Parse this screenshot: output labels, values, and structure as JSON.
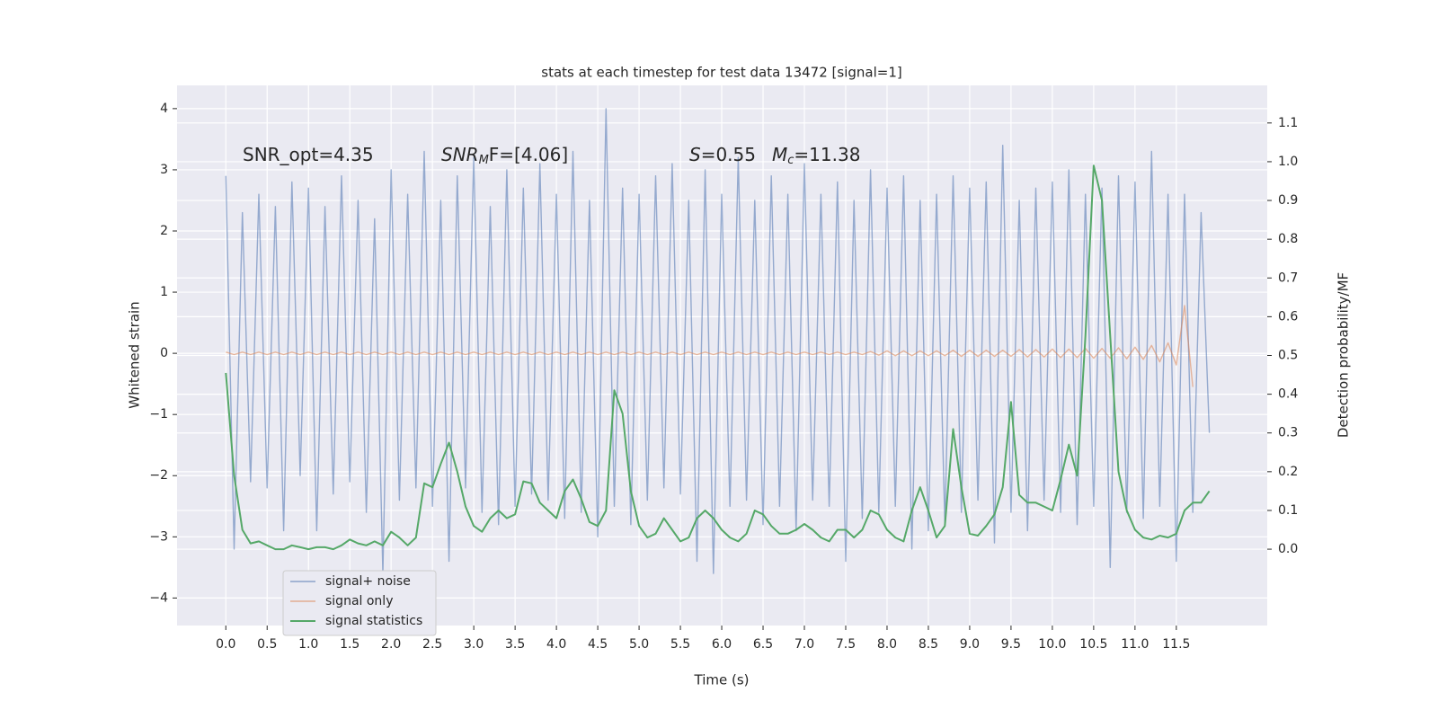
{
  "chart_data": {
    "type": "line",
    "title": "stats at each timestep for test data 13472 [signal=1]",
    "x_label": "Time (s)",
    "y_label": "Whitened strain",
    "y2_label": "Detection probability/MF",
    "annotations": [
      {
        "text": "SNR_opt=4.35"
      },
      {
        "text": "SNR",
        "sub": "M",
        "after": "F=[4.06]"
      },
      {
        "text": "S",
        "after": "=0.55"
      },
      {
        "text": "M",
        "sub": "c",
        "after": "=11.38"
      }
    ],
    "x": [
      0,
      0.1,
      0.2,
      0.3,
      0.4,
      0.5,
      0.6,
      0.7,
      0.8,
      0.9,
      1,
      1.1,
      1.2,
      1.3,
      1.4,
      1.5,
      1.6,
      1.7,
      1.8,
      1.9,
      2,
      2.1,
      2.2,
      2.3,
      2.4,
      2.5,
      2.6,
      2.7,
      2.8,
      2.9,
      3,
      3.1,
      3.2,
      3.3,
      3.4,
      3.5,
      3.6,
      3.7,
      3.8,
      3.9,
      4,
      4.1,
      4.2,
      4.3,
      4.4,
      4.5,
      4.6,
      4.7,
      4.8,
      4.9,
      5,
      5.1,
      5.2,
      5.3,
      5.4,
      5.5,
      5.6,
      5.7,
      5.8,
      5.9,
      6,
      6.1,
      6.2,
      6.3,
      6.4,
      6.5,
      6.6,
      6.7,
      6.8,
      6.9,
      7,
      7.1,
      7.2,
      7.3,
      7.4,
      7.5,
      7.6,
      7.7,
      7.8,
      7.9,
      8,
      8.1,
      8.2,
      8.3,
      8.4,
      8.5,
      8.6,
      8.7,
      8.8,
      8.9,
      9,
      9.1,
      9.2,
      9.3,
      9.4,
      9.5,
      9.6,
      9.7,
      9.8,
      9.9,
      10,
      10.1,
      10.2,
      10.3,
      10.4,
      10.5,
      10.6,
      10.7,
      10.8,
      10.9,
      11,
      11.1,
      11.2,
      11.3,
      11.4,
      11.5,
      11.6,
      11.7,
      11.8,
      11.9
    ],
    "series": [
      {
        "name": "signal+ noise",
        "color": "#4c72b0",
        "values": [
          2.9,
          -3.2,
          2.3,
          -2.1,
          2.6,
          -2.2,
          2.4,
          -2.9,
          2.8,
          -2.0,
          2.7,
          -2.9,
          2.4,
          -2.3,
          2.9,
          -2.1,
          2.5,
          -2.6,
          2.2,
          -3.6,
          3.0,
          -2.4,
          2.6,
          -2.2,
          3.3,
          -2.5,
          2.5,
          -3.4,
          2.9,
          -2.2,
          3.2,
          -2.6,
          2.4,
          -2.8,
          3.0,
          -2.5,
          2.7,
          -2.3,
          3.1,
          -2.4,
          2.6,
          -2.7,
          3.3,
          -2.6,
          2.5,
          -3.0,
          4.0,
          -2.5,
          2.7,
          -2.8,
          2.6,
          -2.4,
          2.9,
          -2.2,
          3.1,
          -2.3,
          2.5,
          -3.4,
          3.0,
          -3.6,
          2.6,
          -2.5,
          3.2,
          -2.4,
          2.5,
          -2.8,
          2.9,
          -2.5,
          2.6,
          -2.9,
          3.1,
          -2.4,
          2.6,
          -2.5,
          2.8,
          -3.4,
          2.5,
          -2.7,
          3.0,
          -2.6,
          2.7,
          -2.5,
          2.9,
          -3.2,
          2.5,
          -2.9,
          2.6,
          -2.8,
          2.9,
          -2.6,
          2.7,
          -2.4,
          2.8,
          -3.1,
          3.4,
          -2.6,
          2.5,
          -2.9,
          2.7,
          -2.4,
          2.8,
          -2.6,
          3.0,
          -2.8,
          2.6,
          -2.5,
          2.7,
          -3.5,
          2.9,
          -2.6,
          2.8,
          -2.7,
          3.3,
          -2.5,
          2.6,
          -3.4,
          2.6,
          -2.6,
          2.3,
          -1.3
        ]
      },
      {
        "name": "signal only",
        "color": "#dd8452",
        "values": [
          0.02,
          -0.02,
          0.02,
          -0.02,
          0.02,
          -0.02,
          0.02,
          -0.02,
          0.02,
          -0.02,
          0.02,
          -0.02,
          0.02,
          -0.02,
          0.02,
          -0.02,
          0.02,
          -0.02,
          0.02,
          -0.02,
          0.02,
          -0.02,
          0.02,
          -0.02,
          0.02,
          -0.02,
          0.02,
          -0.02,
          0.02,
          -0.02,
          0.02,
          -0.02,
          0.02,
          -0.02,
          0.02,
          -0.02,
          0.02,
          -0.02,
          0.02,
          -0.02,
          0.02,
          -0.02,
          0.02,
          -0.02,
          0.02,
          -0.02,
          0.02,
          -0.02,
          0.02,
          -0.02,
          0.02,
          -0.02,
          0.02,
          -0.02,
          0.02,
          -0.02,
          0.02,
          -0.02,
          0.02,
          -0.02,
          0.02,
          -0.02,
          0.02,
          -0.02,
          0.02,
          -0.02,
          0.02,
          -0.02,
          0.02,
          -0.02,
          0.02,
          -0.02,
          0.02,
          -0.02,
          0.02,
          -0.02,
          0.02,
          -0.02,
          0.03,
          -0.03,
          0.04,
          -0.04,
          0.04,
          -0.04,
          0.04,
          -0.04,
          0.04,
          -0.04,
          0.05,
          -0.05,
          0.05,
          -0.05,
          0.05,
          -0.05,
          0.05,
          -0.05,
          0.06,
          -0.06,
          0.06,
          -0.06,
          0.07,
          -0.07,
          0.07,
          -0.07,
          0.08,
          -0.08,
          0.08,
          -0.08,
          0.09,
          -0.09,
          0.1,
          -0.1,
          0.13,
          -0.14,
          0.17,
          -0.19,
          0.78,
          -0.55,
          null,
          null
        ]
      },
      {
        "name": "signal statistics",
        "color": "#55a868",
        "axis": "y2",
        "values": [
          0.455,
          0.19,
          0.05,
          0.015,
          0.02,
          0.01,
          0,
          0,
          0.01,
          0.005,
          0,
          0.005,
          0.005,
          0,
          0.01,
          0.025,
          0.015,
          0.01,
          0.02,
          0.01,
          0.045,
          0.03,
          0.01,
          0.03,
          0.17,
          0.16,
          0.22,
          0.275,
          0.2,
          0.11,
          0.06,
          0.045,
          0.08,
          0.1,
          0.08,
          0.09,
          0.175,
          0.17,
          0.12,
          0.1,
          0.08,
          0.15,
          0.18,
          0.13,
          0.07,
          0.06,
          0.1,
          0.41,
          0.35,
          0.15,
          0.06,
          0.03,
          0.04,
          0.08,
          0.05,
          0.02,
          0.03,
          0.08,
          0.1,
          0.08,
          0.05,
          0.03,
          0.02,
          0.04,
          0.1,
          0.09,
          0.06,
          0.04,
          0.04,
          0.05,
          0.065,
          0.05,
          0.03,
          0.02,
          0.05,
          0.05,
          0.03,
          0.05,
          0.1,
          0.09,
          0.05,
          0.03,
          0.02,
          0.1,
          0.16,
          0.1,
          0.03,
          0.06,
          0.31,
          0.16,
          0.04,
          0.035,
          0.06,
          0.09,
          0.16,
          0.38,
          0.14,
          0.12,
          0.12,
          0.11,
          0.1,
          0.18,
          0.27,
          0.19,
          0.55,
          0.99,
          0.9,
          0.55,
          0.2,
          0.1,
          0.05,
          0.03,
          0.025,
          0.035,
          0.03,
          0.04,
          0.1,
          0.12,
          0.12,
          0.15
        ]
      }
    ],
    "xlim": [
      -0.59,
      12.6
    ],
    "ylim": [
      -4.45,
      4.38
    ],
    "y2lim": [
      -0.197,
      1.197
    ],
    "xticks": [
      {
        "value": 0,
        "label": "0.0"
      },
      {
        "value": 0.5,
        "label": "0.5"
      },
      {
        "value": 1,
        "label": "1.0"
      },
      {
        "value": 1.5,
        "label": "1.5"
      },
      {
        "value": 2,
        "label": "2.0"
      },
      {
        "value": 2.5,
        "label": "2.5"
      },
      {
        "value": 3,
        "label": "3.0"
      },
      {
        "value": 3.5,
        "label": "3.5"
      },
      {
        "value": 4,
        "label": "4.0"
      },
      {
        "value": 4.5,
        "label": "4.5"
      },
      {
        "value": 5,
        "label": "5.0"
      },
      {
        "value": 5.5,
        "label": "5.5"
      },
      {
        "value": 6,
        "label": "6.0"
      },
      {
        "value": 6.5,
        "label": "6.5"
      },
      {
        "value": 7,
        "label": "7.0"
      },
      {
        "value": 7.5,
        "label": "7.5"
      },
      {
        "value": 8,
        "label": "8.0"
      },
      {
        "value": 8.5,
        "label": "8.5"
      },
      {
        "value": 9,
        "label": "9.0"
      },
      {
        "value": 9.5,
        "label": "9.5"
      },
      {
        "value": 10,
        "label": "10.0"
      },
      {
        "value": 10.5,
        "label": "10.5"
      },
      {
        "value": 11,
        "label": "11.0"
      },
      {
        "value": 11.5,
        "label": "11.5"
      }
    ],
    "yticks": [
      {
        "value": -4,
        "label": "−4"
      },
      {
        "value": -3,
        "label": "−3"
      },
      {
        "value": -2,
        "label": "−2"
      },
      {
        "value": -1,
        "label": "−1"
      },
      0,
      1,
      2,
      3,
      4
    ],
    "y2ticks": [
      {
        "value": 0,
        "label": "0.0"
      },
      {
        "value": 0.1,
        "label": "0.1"
      },
      {
        "value": 0.2,
        "label": "0.2"
      },
      {
        "value": 0.3,
        "label": "0.3"
      },
      {
        "value": 0.4,
        "label": "0.4"
      },
      {
        "value": 0.5,
        "label": "0.5"
      },
      {
        "value": 0.6,
        "label": "0.6"
      },
      {
        "value": 0.7,
        "label": "0.7"
      },
      {
        "value": 0.8,
        "label": "0.8"
      },
      {
        "value": 0.9,
        "label": "0.9"
      },
      {
        "value": 1,
        "label": "1.0"
      },
      {
        "value": 1.1,
        "label": "1.1"
      }
    ],
    "grid": true,
    "legend": "lower left"
  }
}
